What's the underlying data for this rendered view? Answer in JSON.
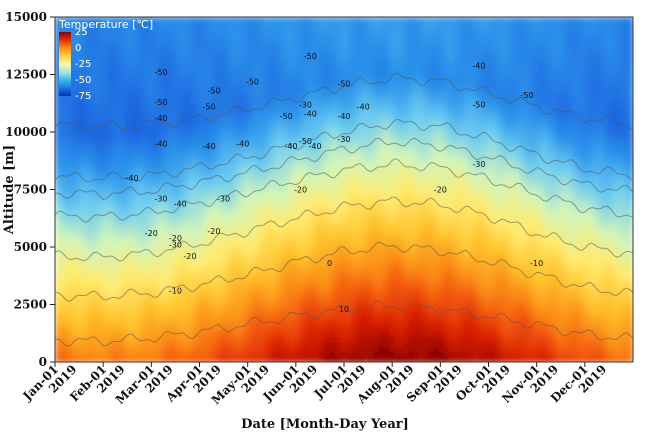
{
  "chart_data": {
    "type": "heatmap",
    "title": "",
    "xlabel": "Date [Month-Day Year]",
    "ylabel": "Altitude [m]",
    "ylim": [
      0,
      15000
    ],
    "y_ticks": [
      "0",
      "2500",
      "5000",
      "7500",
      "10000",
      "12500",
      "15000"
    ],
    "y_tick_values": [
      0,
      2500,
      5000,
      7500,
      10000,
      12500,
      15000
    ],
    "x_tick_labels": [
      {
        "line1": "Jan-01",
        "line2": "2019"
      },
      {
        "line1": "Feb-01",
        "line2": "2019"
      },
      {
        "line1": "Mar-01",
        "line2": "2019"
      },
      {
        "line1": "Apr-01",
        "line2": "2019"
      },
      {
        "line1": "May-01",
        "line2": "2019"
      },
      {
        "line1": "Jun-01",
        "line2": "2019"
      },
      {
        "line1": "Jul-01",
        "line2": "2019"
      },
      {
        "line1": "Aug-01",
        "line2": "2019"
      },
      {
        "line1": "Sep-01",
        "line2": "2019"
      },
      {
        "line1": "Oct-01",
        "line2": "2019"
      },
      {
        "line1": "Nov-01",
        "line2": "2019"
      },
      {
        "line1": "Dec-01",
        "line2": "2019"
      }
    ],
    "colorbar": {
      "title": "Temperature [℃]",
      "ticks": [
        "25",
        "0",
        "-25",
        "-50",
        "-75"
      ],
      "tick_values": [
        25,
        0,
        -25,
        -50,
        -75
      ],
      "range": [
        -75,
        25
      ],
      "colors": [
        "#8b0000",
        "#e03000",
        "#ff8c10",
        "#ffd040",
        "#fff8a0",
        "#a8e8d8",
        "#38b8f0",
        "#1a78e0",
        "#0830b0"
      ]
    },
    "contour_levels": [
      10,
      0,
      -10,
      -20,
      -30,
      -40,
      -50
    ],
    "contour_base_altitude_m": [
      {
        "level": "10",
        "x": [
          0,
          1,
          2,
          3,
          4,
          5,
          6,
          7,
          8,
          9,
          10,
          11,
          12
        ],
        "y": [
          950,
          900,
          1050,
          1300,
          1650,
          2000,
          2300,
          2450,
          2300,
          2000,
          1600,
          1200,
          1000
        ]
      },
      {
        "level": "0",
        "x": [
          0,
          1,
          2,
          3,
          4,
          5,
          6,
          7,
          8,
          9,
          10,
          11,
          12
        ],
        "y": [
          2900,
          2850,
          3000,
          3350,
          3800,
          4350,
          4800,
          5050,
          4850,
          4400,
          3800,
          3250,
          2950
        ]
      },
      {
        "level": "-10",
        "x": [
          0,
          1,
          2,
          3,
          4,
          5,
          6,
          7,
          8,
          9,
          10,
          11,
          12
        ],
        "y": [
          4600,
          4550,
          4750,
          5150,
          5700,
          6250,
          6750,
          7000,
          6850,
          6350,
          5600,
          5000,
          4700
        ]
      },
      {
        "level": "-20",
        "x": [
          0,
          1,
          2,
          3,
          4,
          5,
          6,
          7,
          8,
          9,
          10,
          11,
          12
        ],
        "y": [
          6350,
          6300,
          6500,
          6900,
          7400,
          7900,
          8350,
          8600,
          8450,
          7950,
          7300,
          6700,
          6400
        ]
      },
      {
        "level": "-30",
        "x": [
          0,
          1,
          2,
          3,
          4,
          5,
          6,
          7,
          8,
          9,
          10,
          11,
          12
        ],
        "y": [
          7350,
          7300,
          7450,
          7800,
          8250,
          8750,
          9250,
          9600,
          9400,
          8900,
          8250,
          7700,
          7400
        ]
      },
      {
        "level": "-40",
        "x": [
          0,
          1,
          2,
          3,
          4,
          5,
          6,
          7,
          8,
          9,
          10,
          11,
          12
        ],
        "y": [
          8050,
          8000,
          8100,
          8450,
          8900,
          9450,
          10000,
          10400,
          10250,
          9700,
          9000,
          8400,
          8100
        ]
      },
      {
        "level": "-50",
        "x": [
          0,
          1,
          2,
          3,
          4,
          5,
          6,
          7,
          8,
          9,
          10,
          11,
          12
        ],
        "y": [
          10300,
          10250,
          10300,
          10600,
          11000,
          11500,
          12000,
          12350,
          12200,
          11700,
          11100,
          10600,
          10300
        ]
      }
    ],
    "contour_labels": [
      {
        "text": "10",
        "month": 6.0,
        "alt": 2300
      },
      {
        "text": "0",
        "month": 5.7,
        "alt": 4300
      },
      {
        "text": "-10",
        "month": 10.0,
        "alt": 4300
      },
      {
        "text": "-10",
        "month": 2.5,
        "alt": 3100
      },
      {
        "text": "-20",
        "month": 2.8,
        "alt": 4600
      },
      {
        "text": "-20",
        "month": 3.3,
        "alt": 5700
      },
      {
        "text": "-20",
        "month": 2.5,
        "alt": 5400
      },
      {
        "text": "-20",
        "month": 2.0,
        "alt": 5600
      },
      {
        "text": "-30",
        "month": 2.5,
        "alt": 5100
      },
      {
        "text": "-20",
        "month": 5.1,
        "alt": 7500
      },
      {
        "text": "-20",
        "month": 8.0,
        "alt": 7500
      },
      {
        "text": "-30",
        "month": 8.8,
        "alt": 8600
      },
      {
        "text": "-30",
        "month": 2.2,
        "alt": 7100
      },
      {
        "text": "-30",
        "month": 3.5,
        "alt": 7100
      },
      {
        "text": "-40",
        "month": 2.6,
        "alt": 6900
      },
      {
        "text": "-40",
        "month": 1.6,
        "alt": 8000
      },
      {
        "text": "-40",
        "month": 2.2,
        "alt": 9500
      },
      {
        "text": "-40",
        "month": 2.2,
        "alt": 10600
      },
      {
        "text": "-40",
        "month": 3.2,
        "alt": 9400
      },
      {
        "text": "-40",
        "month": 3.9,
        "alt": 9500
      },
      {
        "text": "-40",
        "month": 4.9,
        "alt": 9400
      },
      {
        "text": "-50",
        "month": 5.2,
        "alt": 9600
      },
      {
        "text": "-40",
        "month": 5.4,
        "alt": 9400
      },
      {
        "text": "-30",
        "month": 6.0,
        "alt": 9700
      },
      {
        "text": "-30",
        "month": 5.2,
        "alt": 11200
      },
      {
        "text": "-40",
        "month": 5.3,
        "alt": 10800
      },
      {
        "text": "-40",
        "month": 6.0,
        "alt": 10700
      },
      {
        "text": "-40",
        "month": 6.4,
        "alt": 11100
      },
      {
        "text": "-50",
        "month": 4.8,
        "alt": 10700
      },
      {
        "text": "-50",
        "month": 2.2,
        "alt": 11300
      },
      {
        "text": "-50",
        "month": 2.2,
        "alt": 12600
      },
      {
        "text": "-50",
        "month": 3.2,
        "alt": 11100
      },
      {
        "text": "-50",
        "month": 3.3,
        "alt": 11800
      },
      {
        "text": "-50",
        "month": 4.1,
        "alt": 12200
      },
      {
        "text": "-50",
        "month": 6.0,
        "alt": 12100
      },
      {
        "text": "-50",
        "month": 8.8,
        "alt": 11200
      },
      {
        "text": "-50",
        "month": 9.8,
        "alt": 11600
      },
      {
        "text": "-40",
        "month": 8.8,
        "alt": 12900
      },
      {
        "text": "-50",
        "month": 5.3,
        "alt": 13300
      }
    ]
  }
}
